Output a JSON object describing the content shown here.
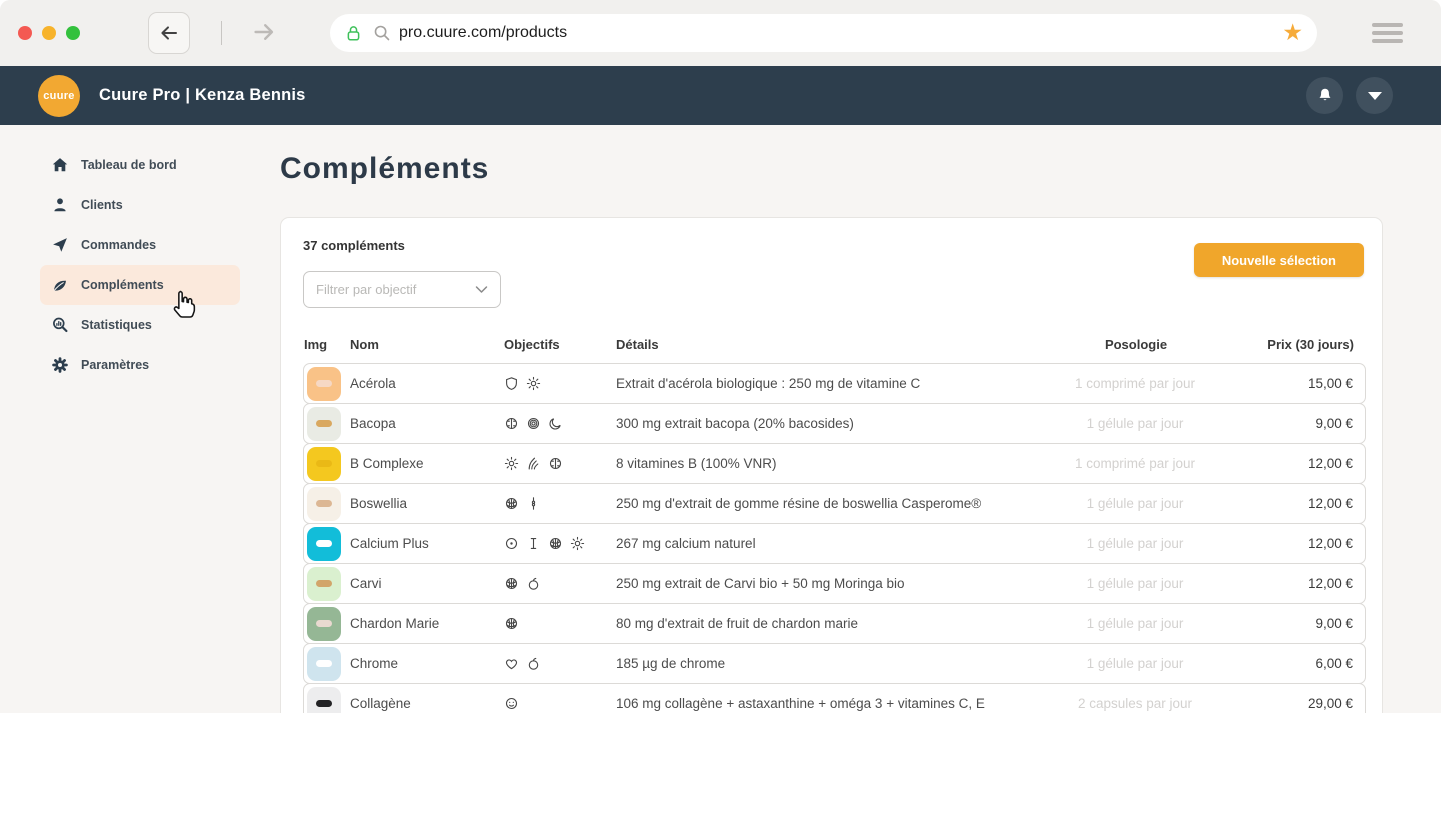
{
  "browser": {
    "url": "pro.cuure.com/products"
  },
  "header": {
    "logo_text": "cuure",
    "title": "Cuure Pro | Kenza Bennis"
  },
  "sidebar": {
    "items": [
      {
        "label": "Tableau de bord",
        "icon": "home",
        "active": false
      },
      {
        "label": "Clients",
        "icon": "person",
        "active": false
      },
      {
        "label": "Commandes",
        "icon": "send",
        "active": false
      },
      {
        "label": "Compléments",
        "icon": "leaf",
        "active": true
      },
      {
        "label": "Statistiques",
        "icon": "stats",
        "active": false
      },
      {
        "label": "Paramètres",
        "icon": "gear",
        "active": false
      }
    ]
  },
  "main": {
    "title": "Compléments",
    "count_label": "37 compléments",
    "filter_placeholder": "Filtrer par objectif",
    "new_selection_button": "Nouvelle sélection",
    "table": {
      "columns": {
        "img": "Img",
        "name": "Nom",
        "objectives": "Objectifs",
        "details": "Détails",
        "dosage": "Posologie",
        "price": "Prix (30 jours)"
      },
      "rows": [
        {
          "name": "Acérola",
          "thumb_bg": "#f9c287",
          "pill_color": "#f6d8c4",
          "objectives": [
            "shield",
            "sun"
          ],
          "details": "Extrait d'acérola biologique : 250 mg de vitamine C",
          "dosage": "1 comprimé par jour",
          "price": "15,00 €"
        },
        {
          "name": "Bacopa",
          "thumb_bg": "#e9ebe4",
          "pill_color": "#d9a860",
          "objectives": [
            "brain",
            "fingerprint",
            "moon"
          ],
          "details": "300 mg extrait bacopa (20% bacosides)",
          "dosage": "1 gélule par jour",
          "price": "9,00 €"
        },
        {
          "name": "B Complexe",
          "thumb_bg": "#f4c81f",
          "pill_color": "#eab916",
          "objectives": [
            "sun",
            "hair",
            "brain"
          ],
          "details": "8 vitamines B (100% VNR)",
          "dosage": "1 comprimé par jour",
          "price": "12,00 €"
        },
        {
          "name": "Boswellia",
          "thumb_bg": "#f6f0e7",
          "pill_color": "#dcb794",
          "objectives": [
            "artichoke",
            "joint"
          ],
          "details": "250 mg d'extrait de gomme résine de boswellia Casperome®",
          "dosage": "1 gélule par jour",
          "price": "12,00 €"
        },
        {
          "name": "Calcium Plus",
          "thumb_bg": "#12bdd9",
          "pill_color": "#ffffff",
          "objectives": [
            "cell",
            "bone",
            "artichoke",
            "sun"
          ],
          "details": "267 mg calcium naturel",
          "dosage": "1 gélule par jour",
          "price": "12,00 €"
        },
        {
          "name": "Carvi",
          "thumb_bg": "#daf0cf",
          "pill_color": "#d2a56a",
          "objectives": [
            "artichoke",
            "apple"
          ],
          "details": "250 mg extrait de Carvi bio + 50 mg Moringa bio",
          "dosage": "1 gélule par jour",
          "price": "12,00 €"
        },
        {
          "name": "Chardon Marie",
          "thumb_bg": "#95b795",
          "pill_color": "#e9d9d0",
          "objectives": [
            "artichoke"
          ],
          "details": "80 mg d'extrait de fruit de chardon marie",
          "dosage": "1 gélule par jour",
          "price": "9,00 €"
        },
        {
          "name": "Chrome",
          "thumb_bg": "#cfe4ee",
          "pill_color": "#ffffff",
          "objectives": [
            "heart",
            "apple"
          ],
          "details": "185 µg de chrome",
          "dosage": "1 gélule par jour",
          "price": "6,00 €"
        },
        {
          "name": "Collagène",
          "thumb_bg": "#ededee",
          "pill_color": "#232325",
          "objectives": [
            "face"
          ],
          "details": "106 mg collagène + astaxanthine + oméga 3 + vitamines C, E",
          "dosage": "2 capsules par jour",
          "price": "29,00 €"
        }
      ]
    }
  },
  "colors": {
    "accent_orange": "#f0a62b",
    "header_bg": "#2d3e4d",
    "active_item_bg": "#fbe9dc"
  }
}
